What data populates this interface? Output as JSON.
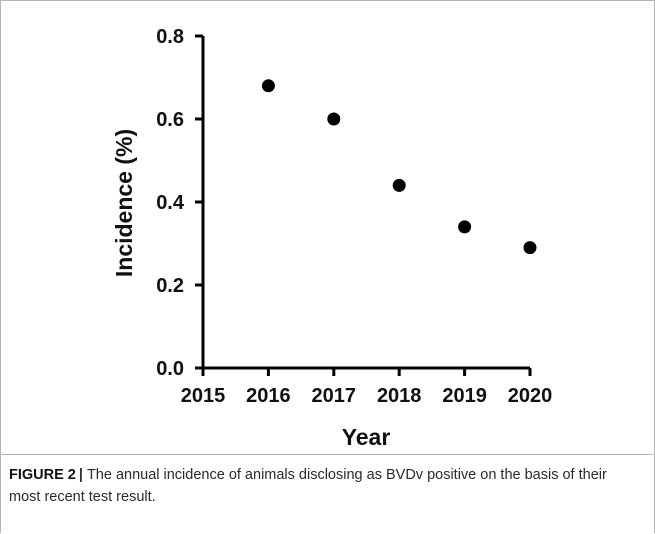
{
  "chart_data": {
    "type": "scatter",
    "x": [
      2016,
      2017,
      2018,
      2019,
      2020
    ],
    "y": [
      0.68,
      0.6,
      0.44,
      0.34,
      0.29
    ],
    "xlim": [
      2015,
      2020
    ],
    "ylim": [
      0.0,
      0.8
    ],
    "xticks": [
      "2015",
      "2016",
      "2017",
      "2018",
      "2019",
      "2020"
    ],
    "yticks": [
      "0.0",
      "0.2",
      "0.4",
      "0.6",
      "0.8"
    ],
    "xlabel": "Year",
    "ylabel": "Incidence (%)",
    "grid": false,
    "marker_color": "#000000"
  },
  "caption": {
    "label": "FIGURE 2",
    "separator": "|",
    "text": "The annual incidence of animals disclosing as BVDv positive on the basis of their most recent test result."
  }
}
